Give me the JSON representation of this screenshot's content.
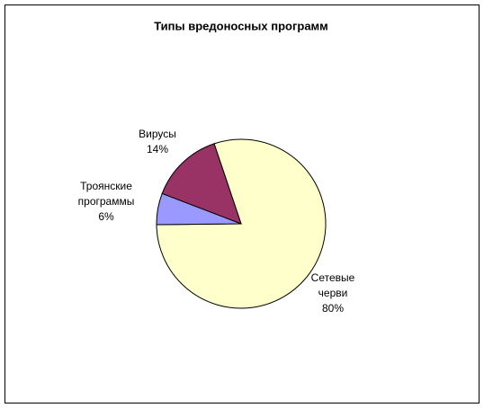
{
  "chart_data": {
    "type": "pie",
    "title": "Типы вредоносных программ",
    "categories": [
      "Сетевые черви",
      "Троянские программы",
      "Вирусы"
    ],
    "values": [
      80,
      6,
      14
    ],
    "value_labels": [
      "80%",
      "6%",
      "14%"
    ],
    "colors": [
      "#FFFFCC",
      "#9999FF",
      "#993366"
    ]
  }
}
